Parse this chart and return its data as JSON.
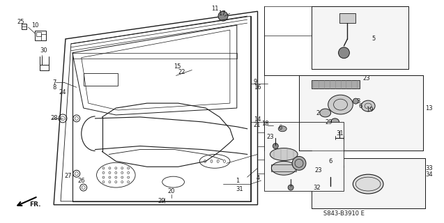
{
  "bg_color": "#ffffff",
  "line_color": "#1a1a1a",
  "text_color": "#1a1a1a",
  "diagram_code": "S843-B3910 E",
  "fig_width": 6.37,
  "fig_height": 3.2,
  "dpi": 100
}
